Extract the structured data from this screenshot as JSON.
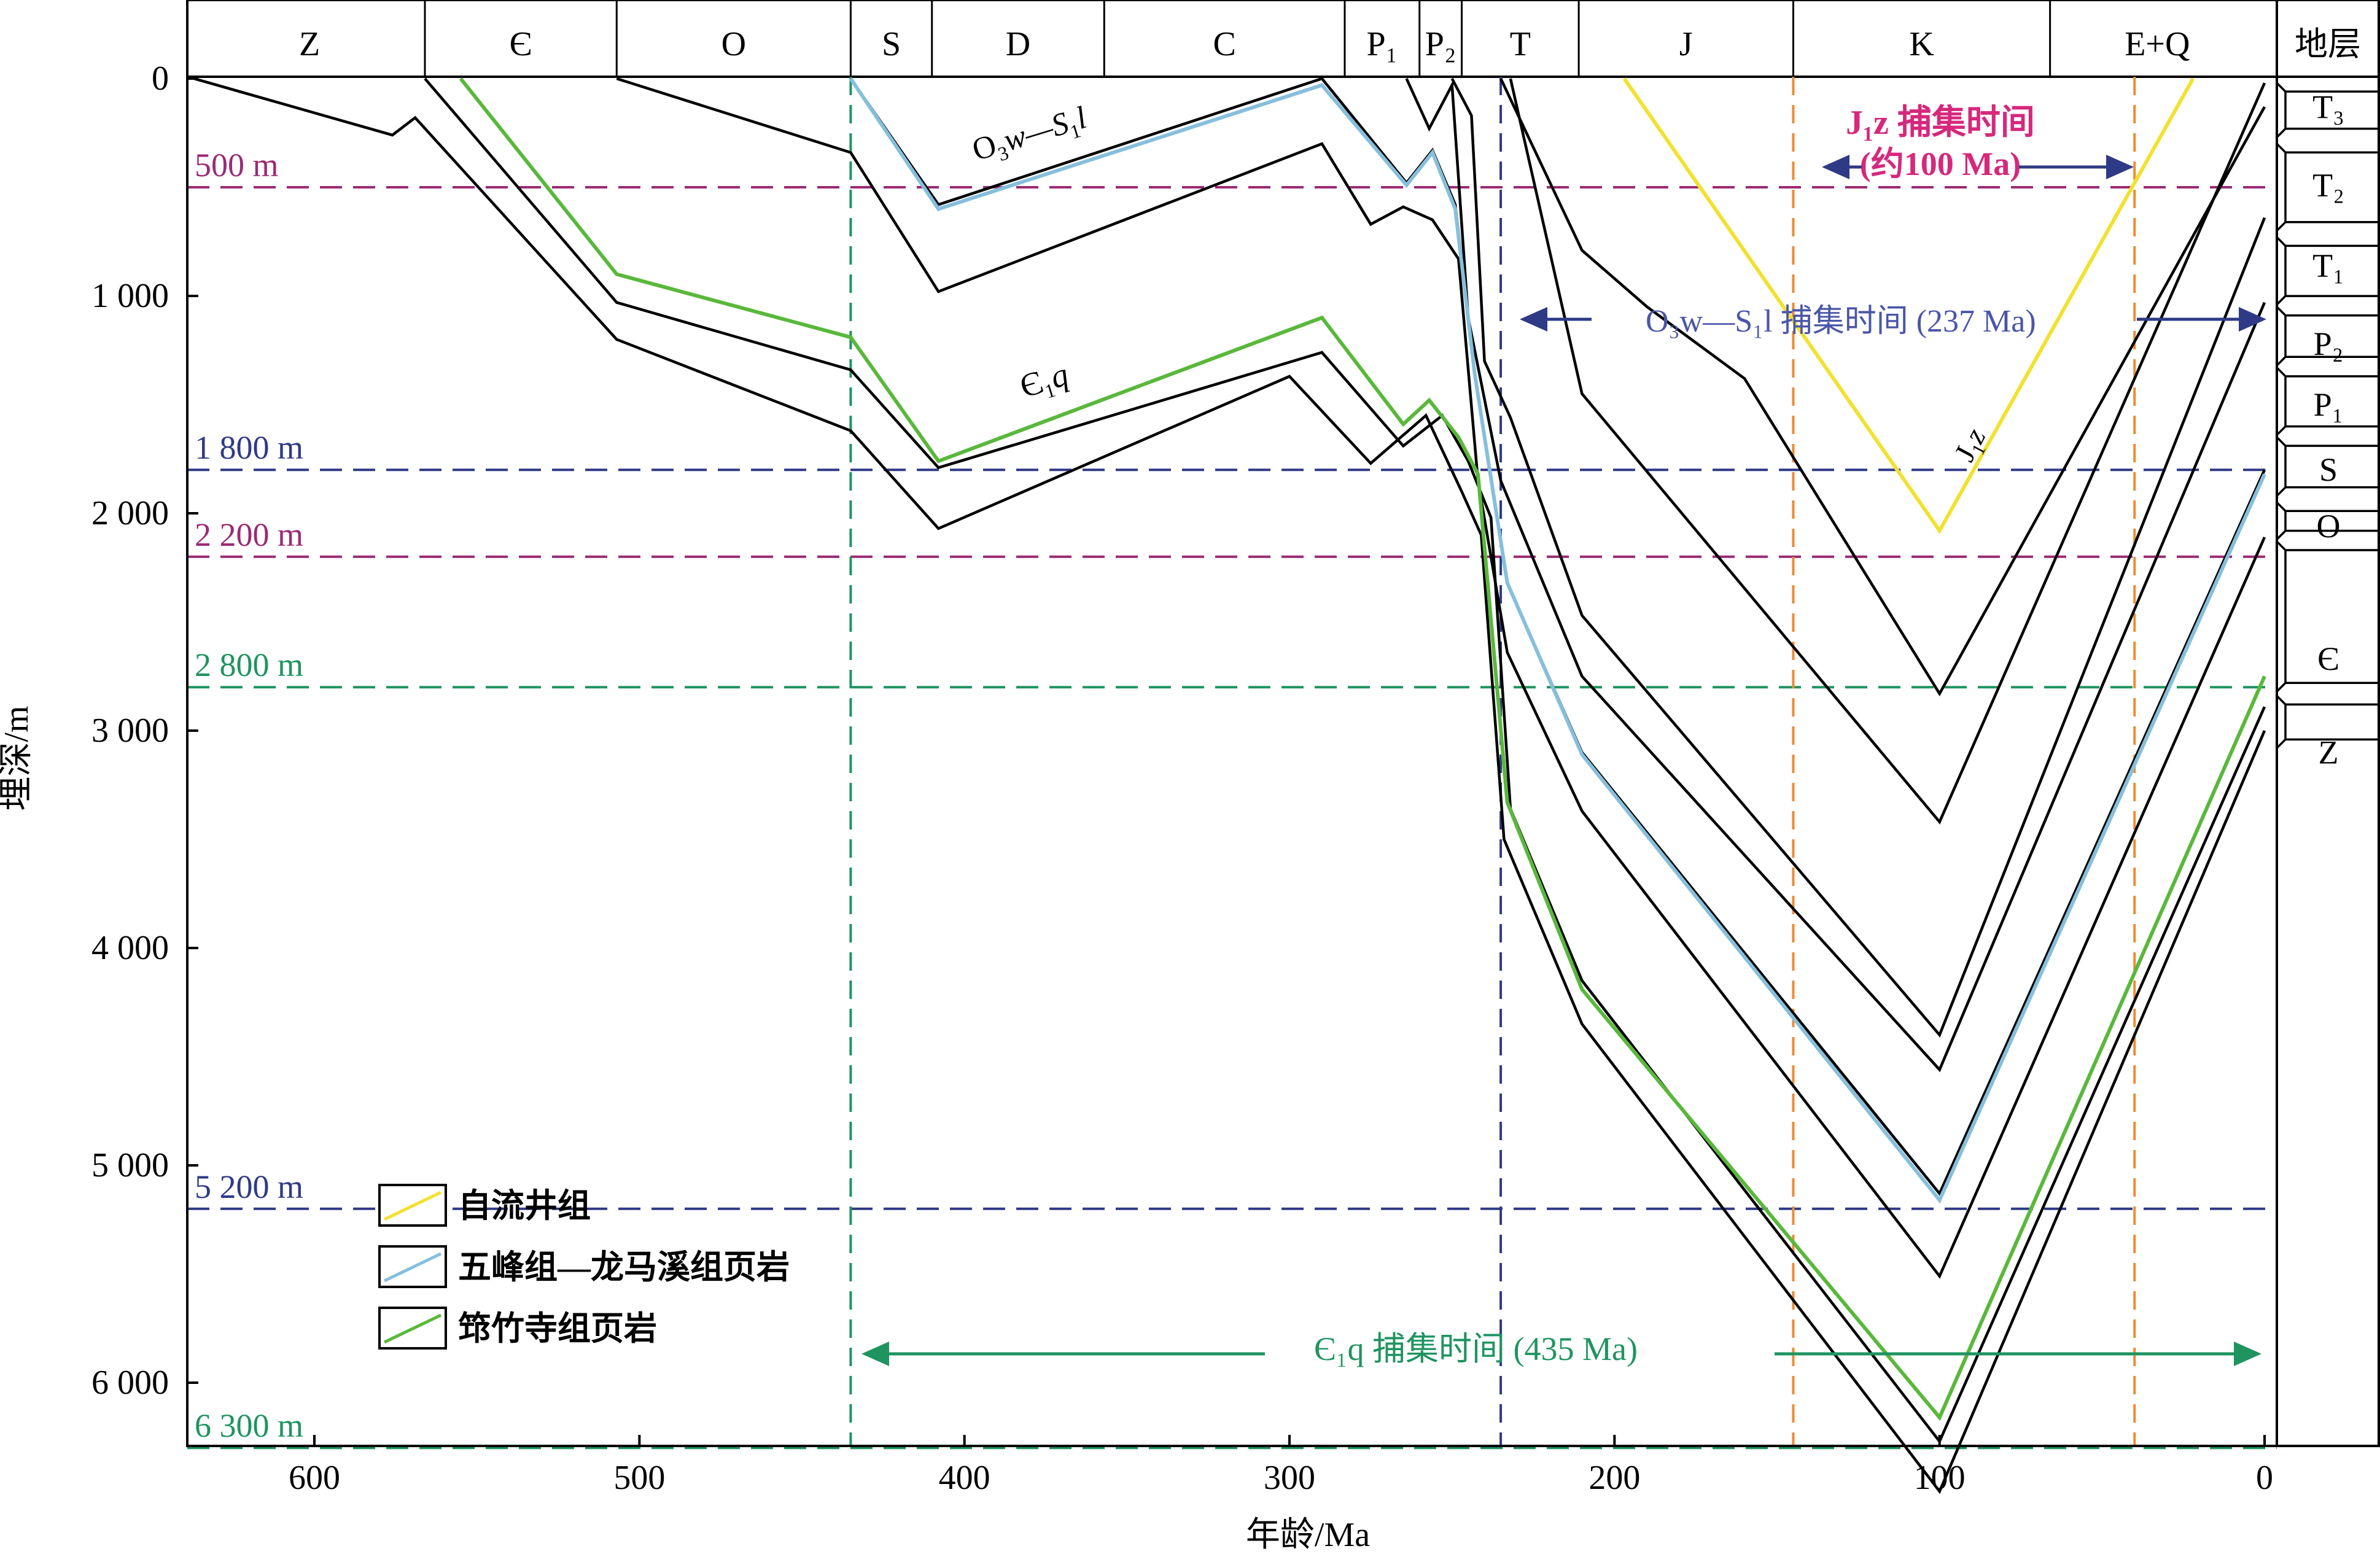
{
  "chart_data": {
    "type": "line",
    "xlabel": "年龄/Ma",
    "ylabel": "埋深/m",
    "x_reversed": true,
    "y_reversed": true,
    "xlim": [
      637,
      0
    ],
    "ylim": [
      0,
      6600
    ],
    "x_ticks": [
      {
        "v": 600,
        "label": "600"
      },
      {
        "v": 500,
        "label": "500"
      },
      {
        "v": 400,
        "label": "400"
      },
      {
        "v": 300,
        "label": "300"
      },
      {
        "v": 200,
        "label": "200"
      },
      {
        "v": 100,
        "label": "100"
      },
      {
        "v": 0,
        "label": "0"
      }
    ],
    "y_ticks": [
      {
        "v": 0,
        "label": "0"
      },
      {
        "v": 1000,
        "label": "1 000"
      },
      {
        "v": 2000,
        "label": "2 000"
      },
      {
        "v": 3000,
        "label": "3 000"
      },
      {
        "v": 4000,
        "label": "4 000"
      },
      {
        "v": 5000,
        "label": "5 000"
      },
      {
        "v": 6000,
        "label": "6 000"
      }
    ],
    "periods": [
      {
        "label": "Z",
        "from": 637,
        "to": 566
      },
      {
        "label": "Є",
        "from": 566,
        "to": 507
      },
      {
        "label": "O",
        "from": 507,
        "to": 435
      },
      {
        "label": "S",
        "from": 435,
        "to": 410
      },
      {
        "label": "D",
        "from": 410,
        "to": 357
      },
      {
        "label": "C",
        "from": 357,
        "to": 283
      },
      {
        "label": "P₁",
        "from": 283,
        "to": 260
      },
      {
        "label": "P₂",
        "from": 260,
        "to": 247
      },
      {
        "label": "T",
        "from": 247,
        "to": 211
      },
      {
        "label": "J",
        "from": 211,
        "to": 145
      },
      {
        "label": "K",
        "from": 145,
        "to": 66
      },
      {
        "label": "E+Q",
        "from": 66,
        "to": 0
      }
    ],
    "strata_header": "地层",
    "strata": [
      {
        "label": "T₃",
        "y": 130
      },
      {
        "label": "T₂",
        "y": 490
      },
      {
        "label": "T₁",
        "y": 860
      },
      {
        "label": "P₂",
        "y": 1220
      },
      {
        "label": "P₁",
        "y": 1500
      },
      {
        "label": "S",
        "y": 1800
      },
      {
        "label": "O",
        "y": 2060
      },
      {
        "label": "Є",
        "y": 2670
      },
      {
        "label": "Z",
        "y": 3100
      }
    ],
    "strata_boundaries": [
      {
        "y1": 20,
        "y2": 270
      },
      {
        "y1": 300,
        "y2": 700
      },
      {
        "y1": 730,
        "y2": 1040
      },
      {
        "y1": 1050,
        "y2": 1320
      },
      {
        "y1": 1330,
        "y2": 1640
      },
      {
        "y1": 1650,
        "y2": 1920
      },
      {
        "y1": 1950,
        "y2": 2120
      },
      {
        "y1": 2130,
        "y2": 2820
      },
      {
        "y1": 2840,
        "y2": 3080
      }
    ],
    "black_series": [
      [
        [
          637,
          0
        ],
        [
          576,
          260
        ],
        [
          569,
          180
        ],
        [
          507,
          1200
        ],
        [
          435,
          1620
        ],
        [
          408,
          2070
        ],
        [
          300,
          1370
        ],
        [
          275,
          1770
        ],
        [
          258,
          1550
        ],
        [
          247,
          1900
        ],
        [
          241,
          2100
        ],
        [
          234,
          3500
        ],
        [
          210,
          4350
        ],
        [
          100,
          6500
        ],
        [
          0,
          3000
        ]
      ],
      [
        [
          566,
          0
        ],
        [
          507,
          1030
        ],
        [
          435,
          1340
        ],
        [
          408,
          1790
        ],
        [
          290,
          1260
        ],
        [
          265,
          1690
        ],
        [
          253,
          1550
        ],
        [
          245,
          1760
        ],
        [
          238,
          2020
        ],
        [
          232,
          3360
        ],
        [
          210,
          4150
        ],
        [
          100,
          6270
        ],
        [
          0,
          2890
        ]
      ],
      [
        [
          507,
          0
        ],
        [
          435,
          340
        ],
        [
          408,
          980
        ],
        [
          290,
          300
        ],
        [
          275,
          670
        ],
        [
          265,
          590
        ],
        [
          256,
          650
        ],
        [
          248,
          830
        ],
        [
          242,
          1850
        ],
        [
          233,
          2640
        ],
        [
          210,
          3370
        ],
        [
          100,
          5510
        ],
        [
          0,
          2110
        ]
      ],
      [
        [
          435,
          0
        ],
        [
          408,
          580
        ],
        [
          290,
          0
        ],
        [
          264,
          480
        ],
        [
          256,
          330
        ],
        [
          249,
          580
        ],
        [
          243,
          1350
        ],
        [
          233,
          2320
        ],
        [
          210,
          3100
        ],
        [
          100,
          5130
        ],
        [
          0,
          1800
        ]
      ],
      [
        [
          264,
          0
        ],
        [
          257,
          230
        ],
        [
          250,
          30
        ],
        [
          245,
          1100
        ],
        [
          235,
          1850
        ],
        [
          210,
          2750
        ],
        [
          100,
          4560
        ],
        [
          0,
          1030
        ]
      ],
      [
        [
          250,
          0
        ],
        [
          244,
          170
        ],
        [
          240,
          1300
        ],
        [
          232,
          1560
        ],
        [
          210,
          2470
        ],
        [
          100,
          4400
        ],
        [
          0,
          640
        ]
      ],
      [
        [
          235,
          0
        ],
        [
          210,
          790
        ],
        [
          190,
          1050
        ],
        [
          160,
          1380
        ],
        [
          100,
          2830
        ],
        [
          0,
          130
        ]
      ],
      [
        [
          232,
          0
        ],
        [
          210,
          1450
        ],
        [
          100,
          3420
        ],
        [
          0,
          20
        ]
      ]
    ],
    "series": [
      {
        "name": "自流井组",
        "color": "#f2e12f",
        "points": [
          [
            197,
            0
          ],
          [
            100,
            2080
          ],
          [
            22,
            0
          ]
        ]
      },
      {
        "name": "五峰组—龙马溪组页岩",
        "color": "#86bfdc",
        "points": [
          [
            435,
            0
          ],
          [
            408,
            600
          ],
          [
            290,
            30
          ],
          [
            264,
            490
          ],
          [
            256,
            340
          ],
          [
            249,
            600
          ],
          [
            243,
            1360
          ],
          [
            233,
            2320
          ],
          [
            210,
            3110
          ],
          [
            100,
            5160
          ],
          [
            0,
            1820
          ]
        ]
      },
      {
        "name": "筇竹寺组页岩",
        "color": "#59b83b",
        "points": [
          [
            555,
            0
          ],
          [
            507,
            900
          ],
          [
            435,
            1190
          ],
          [
            408,
            1760
          ],
          [
            290,
            1100
          ],
          [
            265,
            1590
          ],
          [
            257,
            1480
          ],
          [
            248,
            1650
          ],
          [
            242,
            1820
          ],
          [
            233,
            3330
          ],
          [
            210,
            4190
          ],
          [
            100,
            6160
          ],
          [
            0,
            2750
          ]
        ]
      }
    ],
    "depth_lines": [
      {
        "label": "500 m",
        "y": 500,
        "color": "#9b2a73"
      },
      {
        "label": "1 800 m",
        "y": 1800,
        "color": "#2f3a86"
      },
      {
        "label": "2 200 m",
        "y": 2200,
        "color": "#9b2a73"
      },
      {
        "label": "2 800 m",
        "y": 2800,
        "color": "#1f9460"
      },
      {
        "label": "5 200 m",
        "y": 5200,
        "color": "#2f3a86"
      },
      {
        "label": "6 300 m",
        "y": 6300,
        "color": "#1f9460"
      }
    ],
    "time_lines": [
      {
        "x": 435,
        "color": "#1f9460"
      },
      {
        "x": 235,
        "color": "#2f3a86"
      },
      {
        "x": 145,
        "color": "#ef8a32"
      },
      {
        "x": 40,
        "color": "#ef8a32"
      }
    ],
    "annotations": {
      "ow_label": {
        "main": "O",
        "sub": "3",
        "rest": "w—S",
        "sub2": "1",
        "tail": "l"
      },
      "eq_label": {
        "main": "Є",
        "sub": "1",
        "tail": "q"
      },
      "jz_label": {
        "main": "J",
        "sub": "1",
        "tail": "z"
      },
      "jz_capture": {
        "line1": "J₁z 捕集时间",
        "line2": "(约100 Ma)",
        "color": "#d6287c"
      },
      "ow_capture": {
        "text": "O₃w—S₁l 捕集时间 (237 Ma)",
        "color": "#4a56a8"
      },
      "eq_capture": {
        "text": "Є₁q 捕集时间 (435 Ma)",
        "color": "#1f9460"
      }
    },
    "legend_placement": "lower-left",
    "grid": false
  }
}
